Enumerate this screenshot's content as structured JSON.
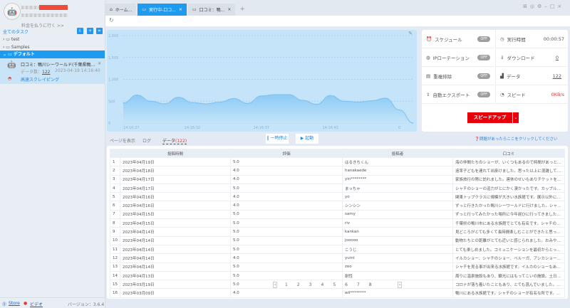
{
  "sidebar": {
    "pay_link": "料金を払うに行く >>",
    "all_tasks": "全てのタスク",
    "folders": [
      {
        "label": "test"
      },
      {
        "label": "Samples"
      },
      {
        "label": "デフォルト"
      }
    ],
    "task": {
      "name": "口コミ：鴨川シーワールド(千葉県鴨川市東...",
      "data_count_label": "データ数：",
      "data_count": "122",
      "timestamp": "2023-04-19 14:16:40",
      "mode": "高速スクレイピング"
    },
    "footer": {
      "store": "Store",
      "video": "ビデオ",
      "version": "バージョン：3.6.4"
    }
  },
  "tabs": [
    {
      "label": "ホーム..."
    },
    {
      "label": "実行中-口コ..."
    },
    {
      "label": "口コミ：鴨..."
    }
  ],
  "stats": {
    "schedule": "スケジュール",
    "ip_rotation": "IPローテーション",
    "dedupe": "重複排除",
    "auto_export": "自動エクスポート",
    "off": "OFF",
    "runtime_label": "実行時間",
    "runtime": "00:00:57",
    "download_label": "ダウンロード",
    "download": "0",
    "data_label": "データ",
    "data": "122",
    "speed_label": "スピード",
    "speed": "0KB/s",
    "speed_up": "スピードアップ"
  },
  "view_tabs": {
    "page": "ページを表示",
    "log": "ログ",
    "data": "データ",
    "data_count": "(122)"
  },
  "actions": {
    "pause": "一時停止",
    "start": "起動",
    "help": "問題があったらここをクリックしてください"
  },
  "table": {
    "headers": [
      "投稿時間",
      "評価",
      "投稿者",
      "口コミ"
    ],
    "rows": [
      [
        "1",
        "2023年04月19日",
        "5.0",
        "はるきちくん",
        "海の仲間たちのショーが、いくつもあるので時間があっという間に..."
      ],
      [
        "2",
        "2023年04月18日",
        "4.0",
        "hanakaede",
        "遠率子どもを連れて出掛けました。思った以上に混雑していて驚き..."
      ],
      [
        "3",
        "2023年04月17日",
        "4.0",
        "yin********",
        "家族旅行の際に訪れました。連休のせいもありチケットを買うので..."
      ],
      [
        "4",
        "2023年04月17日",
        "5.0",
        "まっちゃ",
        "シャチのショーの迫力がとにかく凄かったです。カップルや家族連..."
      ],
      [
        "5",
        "2023年04月16日",
        "4.0",
        "yo",
        "関東トップクラスに規模が大きい水族館です。展示以外にも、イル..."
      ],
      [
        "6",
        "2023年04月16日",
        "4.0",
        "シンシン",
        "ずっと行きたかった鴨川シーワールドに行けました。シャチのショ..."
      ],
      [
        "7",
        "2023年04月15日",
        "5.0",
        "samy",
        "ずっと行ってみたかった場所に今年遅ひに行ってきました。子供..."
      ],
      [
        "8",
        "2023年04月15日",
        "5.0",
        "riv",
        "千葉県の鴨川市にある水族館でとても有名です。シャチのショー..."
      ],
      [
        "9",
        "2023年04月14日",
        "5.0",
        "kankan",
        "見どころがとても多くて長時間楽しむことができたと思っており..."
      ],
      [
        "10",
        "2023年04月14日",
        "5.0",
        "jooooo",
        "動物たちとの距離がとても近いと感じられました。おみやげコーナ..."
      ],
      [
        "11",
        "2023年04月14日",
        "5.0",
        "こうじ",
        "とても楽しめました。コミュニケーションを最初からとっているん..."
      ],
      [
        "12",
        "2023年04月14日",
        "4.0",
        "yumi",
        "イルカショー、シャチのショー、ベルーガ、アシカショーなど、見..."
      ],
      [
        "13",
        "2023年04月14日",
        "5.0",
        "zeo",
        "シャチを見る事が出来る水族館です。イルカのショーもあります。..."
      ],
      [
        "14",
        "2023年04月13日",
        "5.0",
        "耐性",
        "周りに温泉施設もあり、観光にはもってこいの施設。土日は非常に..."
      ],
      [
        "15",
        "2023年03月19日",
        "5.0",
        "",
        "コロナが落ち着いたこともあり、とても混んでいました。割引き..."
      ],
      [
        "16",
        "2023年03月09日",
        "4.0",
        "wil********",
        "鴨川にある水族館です。シャチのショーが有名な所です。近くに泊..."
      ]
    ]
  },
  "pagination": {
    "pages": [
      "1",
      "2",
      "3",
      "4",
      "5",
      "6",
      "7",
      "8"
    ],
    "current": "1"
  },
  "colors": {
    "accent": "#1e9af0",
    "speed_button": "#e8000b",
    "speed_value": "#e53935"
  },
  "chart_data": {
    "type": "area",
    "x": [
      "14:16:27",
      "14:16:28",
      "14:16:29",
      "14:16:30",
      "14:16:31",
      "14:16:32",
      "14:16:33",
      "14:16:34",
      "14:16:35",
      "14:16:36",
      "14:16:37",
      "14:16:38",
      "14:16:39",
      "14:16:40",
      "14:16:41",
      "14:16:42",
      "14:16:43",
      "14:16:44",
      "14:16:45",
      "14:16:46",
      "14:16:47",
      "14:16:48"
    ],
    "x_tick_labels": [
      "14:16:27",
      "14:16:32",
      "14:16:37",
      "14:16:42",
      "0"
    ],
    "values": [
      460,
      640,
      500,
      440,
      590,
      470,
      440,
      480,
      560,
      450,
      620,
      650,
      650,
      520,
      430,
      630,
      500,
      480,
      510,
      570,
      300,
      0
    ],
    "ylim": [
      0,
      2000
    ],
    "y_ticks": [
      "0",
      "500",
      "1,000",
      "1,500",
      "2,000"
    ],
    "grid": true
  }
}
